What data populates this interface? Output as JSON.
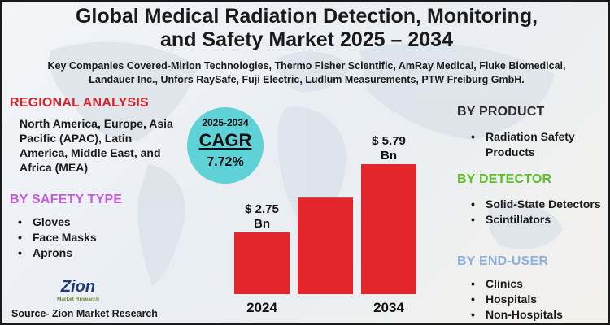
{
  "title_line1": "Global Medical Radiation Detection, Monitoring,",
  "title_line2": "and Safety Market 2025 – 2034",
  "key_companies_line1": "Key Companies Covered-Mirion Technologies, Thermo Fisher Scientific, AmRay Medical, Fluke Biomedical,",
  "key_companies_line2": "Landauer Inc., Unfors RaySafe, Fuji Electric, Ludlum Measurements, PTW Freiburg GmbH.",
  "regional": {
    "heading": "REGIONAL ANALYSIS",
    "text": "North America, Europe, Asia Pacific (APAC), Latin America, Middle East, and Africa (MEA)"
  },
  "safety_type": {
    "heading": "BY SAFETY TYPE",
    "items": [
      "Gloves",
      "Face Masks",
      "Aprons"
    ]
  },
  "cagr": {
    "years": "2025-2034",
    "label": "CAGR",
    "value": "7.72%"
  },
  "product": {
    "heading": "BY PRODUCT",
    "items": [
      "Radiation Safety Products"
    ]
  },
  "detector": {
    "heading": "BY DETECTOR",
    "items": [
      "Solid-State Detectors",
      "Scintillators"
    ]
  },
  "end_user": {
    "heading": "BY END-USER",
    "items": [
      "Clinics",
      "Hospitals",
      "Non-Hospitals"
    ]
  },
  "logo": {
    "word": "Zion",
    "sub": "Market Research"
  },
  "source": "Source- Zion Market Research",
  "colors": {
    "bar": "#e3262b",
    "regional_heading": "#d6232a",
    "safety_heading": "#c45bd8",
    "detector_heading": "#5cbf2a",
    "enduser_heading": "#8fb0dc",
    "cagr_circle": "#5fd2d8",
    "logo": "#1f3b75"
  },
  "chart_data": {
    "type": "bar",
    "categories": [
      "2024",
      "",
      "2034"
    ],
    "values": [
      2.75,
      4.3,
      5.79
    ],
    "data_labels": [
      "$ 2.75 Bn",
      "",
      "$ 5.79 Bn"
    ],
    "title": "",
    "xlabel": "",
    "ylabel": "",
    "ylim": [
      0,
      5.79
    ],
    "grid": false,
    "legend": "none"
  }
}
